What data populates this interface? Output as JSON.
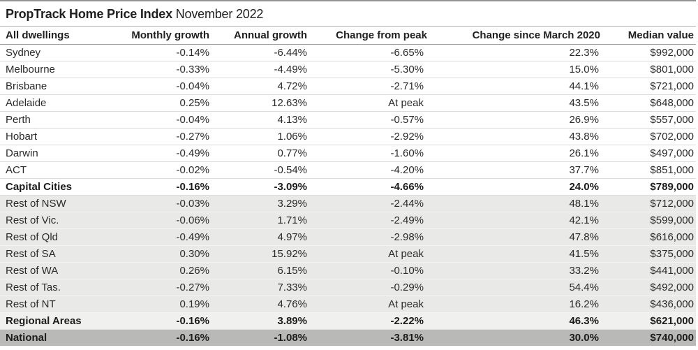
{
  "chart_data": {
    "type": "table",
    "title": "PropTrack Home Price Index",
    "subtitle": "November 2022",
    "columns": [
      "All dwellings",
      "Monthly growth",
      "Annual growth",
      "Change from peak",
      "Change since March 2020",
      "Median value"
    ],
    "rows": [
      {
        "label": "Sydney",
        "values": [
          "-0.14%",
          "-6.44%",
          "-6.65%",
          "22.3%",
          "$992,000"
        ],
        "emphasis": false,
        "band": "white"
      },
      {
        "label": "Melbourne",
        "values": [
          "-0.33%",
          "-4.49%",
          "-5.30%",
          "15.0%",
          "$801,000"
        ],
        "emphasis": false,
        "band": "white"
      },
      {
        "label": "Brisbane",
        "values": [
          "-0.04%",
          "4.72%",
          "-2.71%",
          "44.1%",
          "$721,000"
        ],
        "emphasis": false,
        "band": "white"
      },
      {
        "label": "Adelaide",
        "values": [
          "0.25%",
          "12.63%",
          "At peak",
          "43.5%",
          "$648,000"
        ],
        "emphasis": false,
        "band": "white"
      },
      {
        "label": "Perth",
        "values": [
          "-0.04%",
          "4.13%",
          "-0.57%",
          "26.9%",
          "$557,000"
        ],
        "emphasis": false,
        "band": "white"
      },
      {
        "label": "Hobart",
        "values": [
          "-0.27%",
          "1.06%",
          "-2.92%",
          "43.8%",
          "$702,000"
        ],
        "emphasis": false,
        "band": "white"
      },
      {
        "label": "Darwin",
        "values": [
          "-0.49%",
          "0.77%",
          "-1.60%",
          "26.1%",
          "$497,000"
        ],
        "emphasis": false,
        "band": "white"
      },
      {
        "label": "ACT",
        "values": [
          "-0.02%",
          "-0.54%",
          "-4.20%",
          "37.7%",
          "$851,000"
        ],
        "emphasis": false,
        "band": "white"
      },
      {
        "label": "Capital Cities",
        "values": [
          "-0.16%",
          "-3.09%",
          "-4.66%",
          "24.0%",
          "$789,000"
        ],
        "emphasis": true,
        "band": "white"
      },
      {
        "label": "Rest of NSW",
        "values": [
          "-0.03%",
          "3.29%",
          "-2.44%",
          "48.1%",
          "$712,000"
        ],
        "emphasis": false,
        "band": "shade"
      },
      {
        "label": "Rest of Vic.",
        "values": [
          "-0.06%",
          "1.71%",
          "-2.49%",
          "42.1%",
          "$599,000"
        ],
        "emphasis": false,
        "band": "shade"
      },
      {
        "label": "Rest of Qld",
        "values": [
          "-0.49%",
          "4.97%",
          "-2.98%",
          "47.8%",
          "$616,000"
        ],
        "emphasis": false,
        "band": "shade"
      },
      {
        "label": "Rest of SA",
        "values": [
          "0.30%",
          "15.92%",
          "At peak",
          "41.5%",
          "$375,000"
        ],
        "emphasis": false,
        "band": "shade"
      },
      {
        "label": "Rest of WA",
        "values": [
          "0.26%",
          "6.15%",
          "-0.10%",
          "33.2%",
          "$441,000"
        ],
        "emphasis": false,
        "band": "shade"
      },
      {
        "label": "Rest of Tas.",
        "values": [
          "-0.27%",
          "7.33%",
          "-0.29%",
          "54.4%",
          "$492,000"
        ],
        "emphasis": false,
        "band": "shade"
      },
      {
        "label": "Rest of NT",
        "values": [
          "0.19%",
          "4.76%",
          "At peak",
          "16.2%",
          "$436,000"
        ],
        "emphasis": false,
        "band": "shade"
      },
      {
        "label": "Regional Areas",
        "values": [
          "-0.16%",
          "3.89%",
          "-2.22%",
          "46.3%",
          "$621,000"
        ],
        "emphasis": true,
        "band": "regional"
      },
      {
        "label": "National",
        "values": [
          "-0.16%",
          "-1.08%",
          "-3.81%",
          "30.0%",
          "$740,000"
        ],
        "emphasis": true,
        "band": "national"
      }
    ],
    "layout": {
      "grid": "horizontal-rules-only",
      "legend": "none",
      "shaded_band_color": "#e9e9e7",
      "national_band_color": "#b9b9b7"
    }
  }
}
